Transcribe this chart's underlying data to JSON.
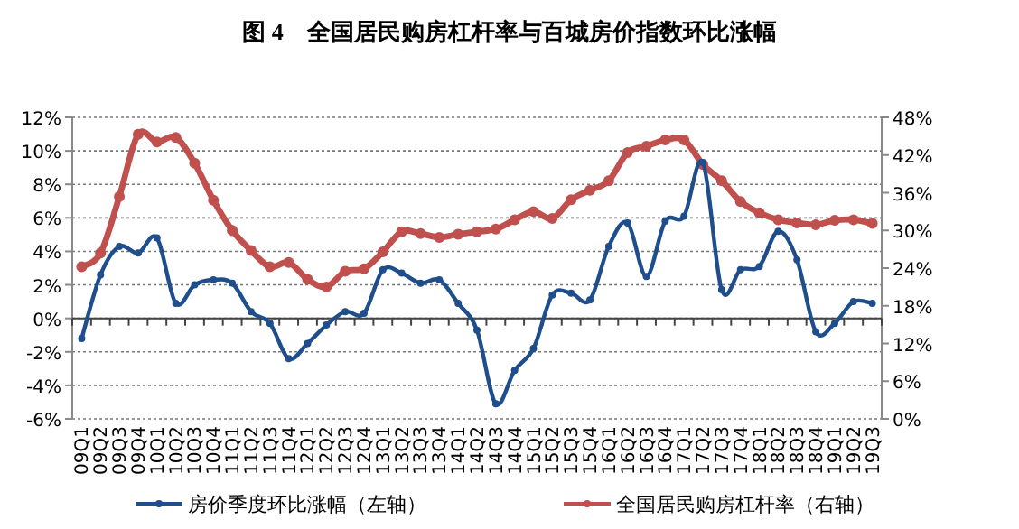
{
  "chart_data": {
    "type": "line",
    "title": "图 4　全国居民购房杠杆率与百城房价指数环比涨幅",
    "categories": [
      "09Q1",
      "09Q2",
      "09Q3",
      "09Q4",
      "10Q1",
      "10Q2",
      "10Q3",
      "10Q4",
      "11Q1",
      "11Q2",
      "11Q3",
      "11Q4",
      "12Q1",
      "12Q2",
      "12Q3",
      "12Q4",
      "13Q1",
      "13Q2",
      "13Q3",
      "13Q4",
      "14Q1",
      "14Q2",
      "14Q3",
      "14Q4",
      "15Q1",
      "15Q2",
      "15Q3",
      "15Q4",
      "16Q1",
      "16Q2",
      "16Q3",
      "16Q4",
      "17Q1",
      "17Q2",
      "17Q3",
      "17Q4",
      "18Q1",
      "18Q2",
      "18Q3",
      "18Q4",
      "19Q1",
      "19Q2",
      "19Q3"
    ],
    "series": [
      {
        "name": "房价季度环比涨幅（左轴）",
        "color": "#1f4e8c",
        "values": [
          -1.2,
          2.6,
          4.3,
          3.9,
          4.8,
          0.9,
          2.0,
          2.3,
          2.1,
          0.4,
          -0.3,
          -2.4,
          -1.5,
          -0.4,
          0.4,
          0.3,
          2.9,
          2.7,
          2.1,
          2.3,
          0.9,
          -0.7,
          -5.1,
          -3.1,
          -1.8,
          1.4,
          1.5,
          1.1,
          4.3,
          5.7,
          2.5,
          5.8,
          6.1,
          9.3,
          1.7,
          2.9,
          3.1,
          5.2,
          3.5,
          -0.8,
          -0.3,
          1.0,
          0.9
        ]
      },
      {
        "name": "全国居民购房杠杆率（右轴）",
        "color": "#c0504d",
        "axis": "y2",
        "values": [
          24.2,
          26.4,
          35.4,
          45.3,
          44.1,
          44.8,
          40.7,
          34.8,
          30.0,
          26.8,
          24.2,
          24.9,
          22.2,
          21.0,
          23.5,
          23.9,
          26.6,
          29.8,
          29.5,
          28.9,
          29.4,
          29.8,
          30.2,
          31.7,
          33.0,
          31.9,
          34.9,
          36.4,
          37.9,
          42.4,
          43.4,
          44.4,
          44.4,
          40.5,
          37.9,
          34.6,
          32.8,
          31.7,
          31.2,
          30.9,
          31.6,
          31.7,
          31.1
        ]
      }
    ],
    "ylim": [
      -6,
      12
    ],
    "yticks": [
      {
        "value": -6,
        "label": "-6%"
      },
      {
        "value": -4,
        "label": "-4%"
      },
      {
        "value": -2,
        "label": "-2%"
      },
      {
        "value": 0,
        "label": "0%"
      },
      {
        "value": 2,
        "label": "2%"
      },
      {
        "value": 4,
        "label": "4%"
      },
      {
        "value": 6,
        "label": "6%"
      },
      {
        "value": 8,
        "label": "8%"
      },
      {
        "value": 10,
        "label": "10%"
      },
      {
        "value": 12,
        "label": "12%"
      }
    ],
    "y2lim": [
      0,
      48
    ],
    "y2ticks": [
      {
        "value": 0,
        "label": "0%"
      },
      {
        "value": 6,
        "label": "6%"
      },
      {
        "value": 12,
        "label": "12%"
      },
      {
        "value": 18,
        "label": "18%"
      },
      {
        "value": 24,
        "label": "24%"
      },
      {
        "value": 30,
        "label": "30%"
      },
      {
        "value": 36,
        "label": "36%"
      },
      {
        "value": 42,
        "label": "42%"
      },
      {
        "value": 48,
        "label": "48%"
      }
    ],
    "grid": "y",
    "legend": "bottom",
    "marker": "circle"
  }
}
